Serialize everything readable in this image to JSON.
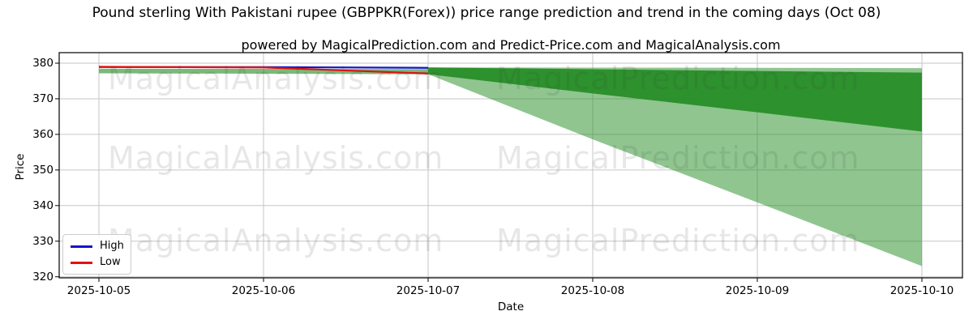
{
  "title": "Pound sterling With Pakistani rupee (GBPPKR(Forex)) price range prediction and trend in the coming days (Oct 08)",
  "subtitle": "powered by MagicalPrediction.com and Predict-Price.com and MagicalAnalysis.com",
  "watermarks": {
    "left": "MagicalAnalysis.com",
    "right": "MagicalPrediction.com"
  },
  "chart_data": {
    "type": "line",
    "title": "Pound sterling With Pakistani rupee (GBPPKR(Forex)) price range prediction and trend in the coming days (Oct 08)",
    "xlabel": "Date",
    "ylabel": "Price",
    "ylim": [
      320,
      380
    ],
    "yticks": [
      320,
      330,
      340,
      350,
      360,
      370,
      380
    ],
    "categories": [
      "2025-10-05",
      "2025-10-06",
      "2025-10-07",
      "2025-10-08",
      "2025-10-09",
      "2025-10-10"
    ],
    "grid": true,
    "grid_color": "#c6c6c6",
    "series": [
      {
        "name": "High",
        "color": "#1414c8",
        "x_indices": [
          0,
          1,
          2
        ],
        "values": [
          378.9,
          378.9,
          378.7
        ]
      },
      {
        "name": "Low",
        "color": "#e01212",
        "x_indices": [
          0,
          1,
          2
        ],
        "values": [
          379.0,
          378.8,
          377.1
        ]
      }
    ],
    "bands": [
      {
        "name": "historical-high-low-range",
        "color": "#228b22",
        "opacity": 0.6,
        "x_indices": [
          0,
          1,
          2
        ],
        "upper": [
          378.45,
          378.4,
          378.35
        ],
        "lower": [
          377.15,
          377.05,
          376.9
        ]
      },
      {
        "name": "forecast-outer-range",
        "color": "#228b22",
        "opacity": 0.5,
        "x_indices": [
          2,
          3,
          4,
          5
        ],
        "upper": [
          378.8,
          378.75,
          378.7,
          378.6
        ],
        "lower": [
          376.9,
          358.6,
          340.9,
          323.0
        ]
      },
      {
        "name": "forecast-inner-range",
        "color": "#228b22",
        "opacity": 0.9,
        "x_indices": [
          2,
          3,
          4,
          5
        ],
        "upper": [
          378.8,
          378.3,
          377.8,
          377.35
        ],
        "lower": [
          376.9,
          371.5,
          366.2,
          360.8
        ]
      }
    ],
    "legend": {
      "position": "lower left",
      "entries": [
        {
          "label": "High",
          "color": "#1414c8"
        },
        {
          "label": "Low",
          "color": "#e01212"
        }
      ]
    }
  }
}
